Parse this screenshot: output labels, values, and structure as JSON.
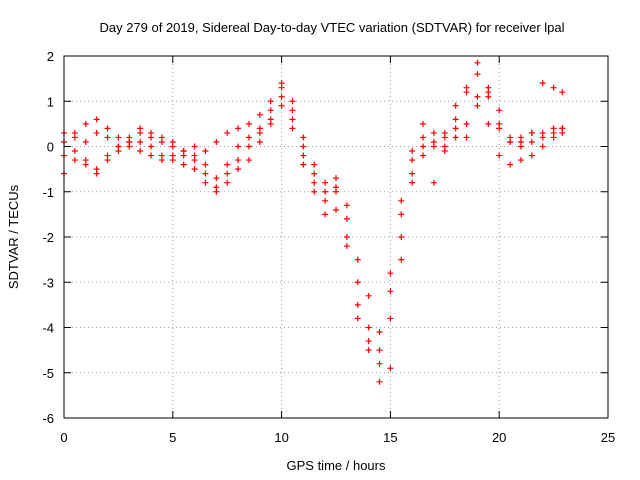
{
  "chart_data": {
    "type": "scatter",
    "title": "Day 279 of 2019, Sidereal Day-to-day VTEC variation (SDTVAR) for receiver lpal",
    "xlabel": "GPS time / hours",
    "ylabel": "SDTVAR / TECUs",
    "xlim": [
      0,
      25
    ],
    "ylim": [
      -6,
      2
    ],
    "xticks": [
      0,
      5,
      10,
      15,
      20,
      25
    ],
    "yticks": [
      -6,
      -5,
      -4,
      -3,
      -2,
      -1,
      0,
      1,
      2
    ],
    "grid": true,
    "marker": "plus",
    "color": "#ff0000",
    "series": [
      {
        "x": [
          0,
          0.5,
          1,
          1.5,
          2,
          2.5,
          3,
          3.5,
          4,
          4.5,
          5,
          5.5,
          6,
          6.5,
          7,
          7.5,
          8,
          8.5,
          9,
          9.5,
          10,
          10.5,
          11,
          11.5,
          12,
          12.5,
          13,
          13.5,
          14,
          14.5,
          15,
          15.5,
          16,
          16.5,
          17,
          17.5,
          18,
          18.5,
          19,
          19.5,
          20,
          20.5,
          21,
          21.5,
          22,
          22.5,
          22.9
        ],
        "values": [
          0.3,
          0.2,
          0.1,
          0.3,
          0.2,
          0.0,
          0.1,
          0.3,
          0.2,
          0.1,
          0.0,
          -0.1,
          -0.2,
          -0.1,
          0.1,
          0.3,
          0.4,
          0.5,
          0.7,
          1.0,
          1.4,
          1.0,
          0.2,
          -0.4,
          -0.8,
          -0.7,
          -1.3,
          -2.5,
          -3.3,
          -4.5,
          -2.8,
          -1.2,
          -0.1,
          0.5,
          0.3,
          0.2,
          0.6,
          1.3,
          1.85,
          1.2,
          0.5,
          0.2,
          0.0,
          0.1,
          0.3,
          0.4,
          0.3
        ]
      },
      {
        "x": [
          0,
          0.5,
          1,
          1.5,
          2,
          2.5,
          3,
          3.5,
          4,
          4.5,
          5,
          5.5,
          6,
          6.5,
          7,
          7.5,
          8,
          8.5,
          9,
          9.5,
          10,
          10.5,
          11,
          11.5,
          12,
          12.5,
          13,
          13.5,
          14,
          14.5,
          15,
          15.5,
          16,
          16.5,
          17,
          17.5,
          18,
          18.5,
          19,
          19.5,
          20,
          20.5,
          21,
          21.5,
          22,
          22.5,
          22.9
        ],
        "values": [
          -0.2,
          -0.1,
          -0.3,
          -0.5,
          -0.2,
          0.0,
          0.2,
          0.4,
          0.3,
          0.2,
          0.1,
          -0.2,
          -0.3,
          -0.6,
          -0.9,
          -0.6,
          -0.3,
          0.0,
          0.3,
          0.6,
          1.1,
          0.6,
          -0.4,
          -1.0,
          -1.5,
          -1.0,
          -2.0,
          -3.5,
          -4.5,
          -5.2,
          -3.8,
          -2.0,
          -0.6,
          -0.2,
          -0.8,
          0.3,
          0.9,
          1.2,
          1.1,
          0.5,
          -0.2,
          -0.4,
          -0.3,
          -0.2,
          0.0,
          0.2,
          0.4
        ]
      },
      {
        "x": [
          0,
          0.5,
          1,
          1.5,
          2,
          2.5,
          3,
          3.5,
          4,
          4.5,
          5,
          5.5,
          6,
          6.5,
          7,
          7.5,
          8,
          8.5,
          9,
          9.5,
          10,
          10.5,
          11,
          11.5,
          12,
          12.5,
          13,
          13.5,
          14,
          14.5,
          15,
          15.5,
          16,
          16.5,
          17,
          17.5,
          18,
          18.5,
          19,
          19.5,
          20,
          20.5,
          21,
          21.5,
          22,
          22.5,
          22.9
        ],
        "values": [
          0.1,
          0.3,
          0.5,
          0.6,
          0.4,
          0.2,
          0.0,
          -0.1,
          -0.2,
          -0.3,
          -0.2,
          -0.1,
          0.0,
          -0.4,
          -0.7,
          -0.4,
          0.0,
          0.2,
          0.4,
          0.8,
          1.3,
          0.8,
          0.0,
          -0.6,
          -1.0,
          -0.9,
          -1.6,
          -3.0,
          -4.0,
          -4.8,
          -4.9,
          -2.5,
          -0.8,
          0.2,
          0.0,
          -0.1,
          0.2,
          0.5,
          1.6,
          1.3,
          0.8,
          0.1,
          0.1,
          0.3,
          0.2,
          0.3,
          0.4
        ]
      },
      {
        "x": [
          0,
          0.5,
          1,
          1.5,
          2,
          2.5,
          3,
          3.5,
          4,
          4.5,
          5,
          5.5,
          6,
          6.5,
          7,
          7.5,
          8,
          8.5,
          9,
          9.5,
          10,
          10.5,
          11,
          11.5,
          12,
          12.5,
          13,
          13.5,
          14,
          14.5,
          15,
          15.5,
          16,
          16.5,
          17,
          17.5,
          18,
          18.5,
          19,
          19.5,
          20,
          20.5,
          21,
          21.5,
          22,
          22.5,
          22.9
        ],
        "values": [
          -0.6,
          -0.3,
          -0.4,
          -0.6,
          -0.3,
          -0.1,
          0.1,
          0.1,
          0.0,
          -0.2,
          -0.3,
          -0.4,
          -0.5,
          -0.8,
          -1.0,
          -0.8,
          -0.5,
          -0.3,
          0.1,
          0.5,
          0.9,
          0.4,
          -0.2,
          -0.8,
          -1.2,
          -1.4,
          -2.2,
          -3.8,
          -4.3,
          -4.1,
          -3.2,
          -1.5,
          -0.3,
          0.0,
          0.1,
          0.0,
          0.4,
          0.2,
          0.9,
          1.1,
          0.4,
          0.1,
          0.2,
          0.3,
          1.4,
          1.3,
          1.2
        ]
      }
    ]
  }
}
